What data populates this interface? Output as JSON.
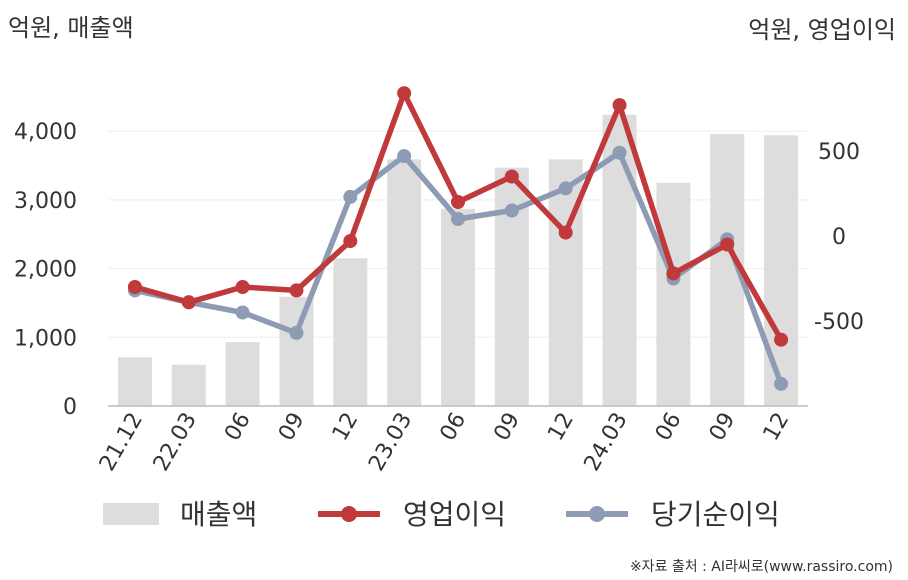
{
  "chart_data": {
    "type": "bar+line",
    "left_unit_label": "억원, 매출액",
    "right_unit_label": "억원, 영업이익",
    "categories": [
      "21.12",
      "22.03",
      "06",
      "09",
      "12",
      "23.03",
      "06",
      "09",
      "12",
      "24.03",
      "06",
      "09",
      "12"
    ],
    "left_axis": {
      "ylim": [
        0,
        4000
      ],
      "ticks": [
        0,
        1000,
        2000,
        3000,
        4000
      ],
      "tick_labels": [
        "0",
        "1,000",
        "2,000",
        "3,000",
        "4,000"
      ]
    },
    "right_axis": {
      "ticks": [
        -500,
        0,
        500
      ],
      "tick_labels": [
        "-500",
        "0",
        "500"
      ]
    },
    "series": [
      {
        "name": "매출액",
        "kind": "bar",
        "axis": "left",
        "color": "#dddddd",
        "values": [
          710,
          600,
          930,
          1590,
          2150,
          3590,
          2870,
          3470,
          3590,
          4240,
          3250,
          3960,
          3940
        ]
      },
      {
        "name": "영업이익",
        "kind": "line",
        "axis": "right",
        "color": "#c0393b",
        "values": [
          -300,
          -390,
          -300,
          -320,
          -30,
          840,
          200,
          350,
          20,
          770,
          -220,
          -50,
          -610
        ]
      },
      {
        "name": "당기순이익",
        "kind": "line",
        "axis": "right",
        "color": "#8e9bb5",
        "values": [
          -320,
          -390,
          -450,
          -570,
          230,
          470,
          100,
          150,
          280,
          490,
          -250,
          -20,
          -870
        ]
      }
    ],
    "legend": [
      "매출액",
      "영업이익",
      "당기순이익"
    ],
    "legend_position": "bottom",
    "grid": true
  },
  "source_text": "※자료 출처 : AI라씨로(www.rassiro.com)"
}
